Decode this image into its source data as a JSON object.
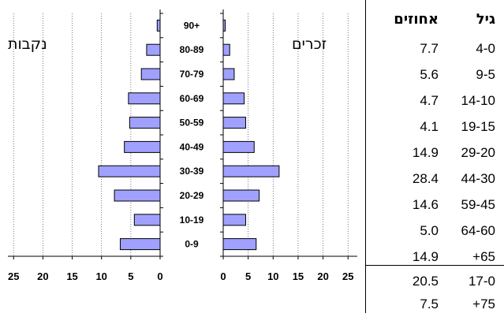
{
  "chart_data": [
    {
      "type": "bar",
      "orientation": "horizontal",
      "title": "נקבות",
      "categories": [
        "90+",
        "80-89",
        "70-79",
        "60-69",
        "50-59",
        "40-49",
        "30-39",
        "20-29",
        "10-19",
        "0-9"
      ],
      "values": [
        0.5,
        2.3,
        3.2,
        5.4,
        5.2,
        6.1,
        10.5,
        7.8,
        4.4,
        6.8
      ],
      "xlim": [
        0,
        25
      ],
      "xticks": [
        "25",
        "20",
        "15",
        "10",
        "5",
        "0"
      ],
      "x_direction": "reversed",
      "grid": "vertical-dotted",
      "bar_color": "#a0a0ff"
    },
    {
      "type": "bar",
      "orientation": "horizontal",
      "title": "זכרים",
      "categories": [
        "90+",
        "80-89",
        "70-79",
        "60-69",
        "50-59",
        "40-49",
        "30-39",
        "20-29",
        "10-19",
        "0-9"
      ],
      "values": [
        0.4,
        1.3,
        2.2,
        4.2,
        4.5,
        6.2,
        11.2,
        7.2,
        4.5,
        6.6
      ],
      "xlim": [
        0,
        25
      ],
      "xticks": [
        "0",
        "5",
        "10",
        "15",
        "20",
        "25"
      ],
      "grid": "vertical-dotted",
      "bar_color": "#a0a0ff"
    },
    {
      "type": "table",
      "headers": {
        "age": "גיל",
        "percent": "אחוזים"
      },
      "rows": [
        {
          "age": "4-0",
          "percent": "7.7"
        },
        {
          "age": "9-5",
          "percent": "5.6"
        },
        {
          "age": "14-10",
          "percent": "4.7"
        },
        {
          "age": "19-15",
          "percent": "4.1"
        },
        {
          "age": "29-20",
          "percent": "14.9"
        },
        {
          "age": "44-30",
          "percent": "28.4"
        },
        {
          "age": "59-45",
          "percent": "14.6"
        },
        {
          "age": "64-60",
          "percent": "5.0"
        },
        {
          "age": "+65",
          "percent": "14.9"
        }
      ],
      "summary_rows": [
        {
          "age": "17-0",
          "percent": "20.5"
        },
        {
          "age": "+75",
          "percent": "7.5"
        }
      ]
    }
  ],
  "labels": {
    "female": "נקבות",
    "male": "זכרים",
    "categories": [
      "90+",
      "80-89",
      "70-79",
      "60-69",
      "50-59",
      "40-49",
      "30-39",
      "20-29",
      "10-19",
      "0-9"
    ]
  },
  "colors": {
    "bar_fill": "#a0a0ff",
    "bar_stroke": "#000000",
    "grid": "#555555"
  }
}
